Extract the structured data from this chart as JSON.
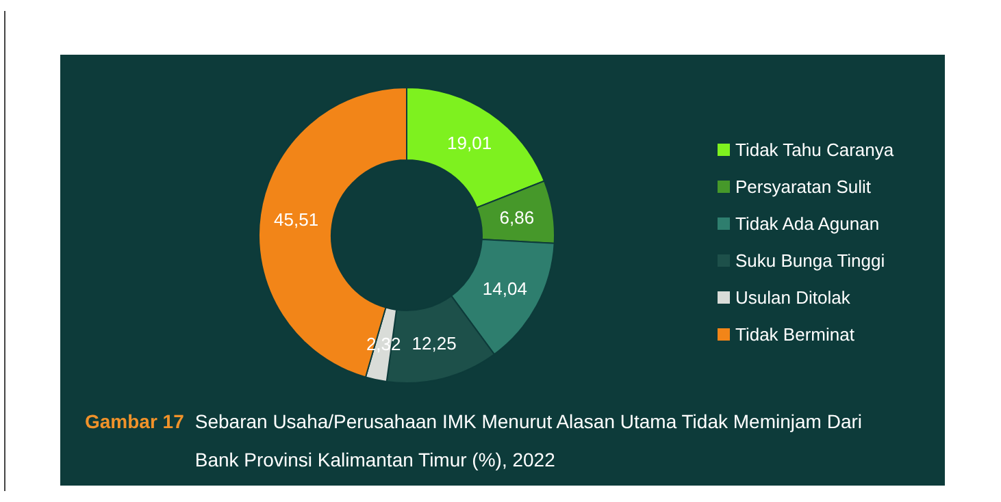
{
  "chart_data": {
    "type": "donut",
    "title": "Gambar 17",
    "subtitle": "Sebaran Usaha/Perusahaan IMK Menurut Alasan Utama Tidak Meminjam Dari Bank Provinsi Kalimantan Timur (%), 2022",
    "categories": [
      "Tidak Tahu Caranya",
      "Persyaratan Sulit",
      "Tidak Ada Agunan",
      "Suku Bunga Tinggi",
      "Usulan Ditolak",
      "Tidak Berminat"
    ],
    "values": [
      19.01,
      6.86,
      14.04,
      12.25,
      2.32,
      45.51
    ],
    "value_labels": [
      "19,01",
      "6,86",
      "14,04",
      "12,25",
      "2,32",
      "45,51"
    ],
    "colors": [
      "#7ef11f",
      "#46982a",
      "#2e7e6e",
      "#1d504a",
      "#d9dcd8",
      "#f28518"
    ],
    "legend": "right"
  }
}
